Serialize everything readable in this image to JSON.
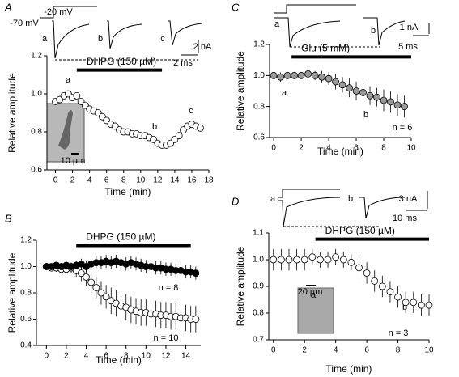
{
  "chart_data": [
    {
      "type": "scatter",
      "title": "A",
      "xlabel": "Time (min)",
      "ylabel": "Relative  amplitude",
      "xlim": [
        -1,
        18
      ],
      "ylim": [
        0.6,
        1.2
      ],
      "xticks": [
        0,
        2,
        4,
        6,
        8,
        10,
        12,
        14,
        16,
        18
      ],
      "yticks": [
        0.6,
        0.8,
        {
          "value": 1,
          "label": "1.0"
        },
        1.2
      ],
      "application": {
        "label": "DHPG (150 µM)",
        "start": 2.5,
        "end": 12.5
      },
      "annotations": [
        "-70 mV",
        "-20 mV",
        "a",
        "b",
        "c",
        "2 nA",
        "2 ms",
        "a",
        "b",
        "c",
        "10 µm"
      ],
      "x": [
        0,
        0.5,
        1,
        1.5,
        2,
        2.5,
        3,
        3.5,
        4,
        4.5,
        5,
        5.5,
        6,
        6.5,
        7,
        7.5,
        8,
        8.5,
        9,
        9.5,
        10,
        10.5,
        11,
        11.5,
        12,
        12.5,
        13,
        13.5,
        14,
        14.5,
        15,
        15.5,
        16,
        16.5,
        17
      ],
      "series": [
        {
          "color": "#000000",
          "fill": "#ffffff",
          "values": [
            0.96,
            0.97,
            0.99,
            1.0,
            0.98,
            0.99,
            0.96,
            0.94,
            0.92,
            0.91,
            0.9,
            0.88,
            0.86,
            0.84,
            0.83,
            0.81,
            0.8,
            0.8,
            0.79,
            0.79,
            0.78,
            0.78,
            0.77,
            0.76,
            0.74,
            0.73,
            0.73,
            0.74,
            0.76,
            0.78,
            0.81,
            0.83,
            0.84,
            0.83,
            0.82
          ]
        }
      ]
    },
    {
      "type": "scatter",
      "title": "B",
      "xlabel": "Time (min)",
      "ylabel": "Relative amplitude",
      "xlim": [
        -1,
        15.5
      ],
      "ylim": [
        0.4,
        1.2
      ],
      "xticks": [
        0,
        2,
        4,
        6,
        8,
        10,
        12,
        14
      ],
      "yticks": [
        0.4,
        0.6,
        0.8,
        {
          "value": 1,
          "label": "1.0"
        },
        1.2
      ],
      "application": {
        "label": "DHPG (150 µM)",
        "start": 3,
        "end": 14.5
      },
      "annotations": [
        "n = 8",
        "n = 10"
      ],
      "x": [
        0,
        0.5,
        1,
        1.5,
        2,
        2.5,
        3,
        3.5,
        4,
        4.5,
        5,
        5.5,
        6,
        6.5,
        7,
        7.5,
        8,
        8.5,
        9,
        9.5,
        10,
        10.5,
        11,
        11.5,
        12,
        12.5,
        13,
        13.5,
        14,
        14.5,
        15
      ],
      "series": [
        {
          "color": "#000000",
          "fill": "#ffffff",
          "values": [
            1.0,
            0.99,
            0.99,
            0.98,
            0.98,
            0.99,
            0.97,
            0.95,
            0.92,
            0.88,
            0.84,
            0.8,
            0.77,
            0.74,
            0.72,
            0.7,
            0.69,
            0.67,
            0.66,
            0.65,
            0.65,
            0.64,
            0.64,
            0.63,
            0.63,
            0.62,
            0.62,
            0.61,
            0.61,
            0.6,
            0.6
          ],
          "errors": [
            0.02,
            0.02,
            0.03,
            0.03,
            0.03,
            0.04,
            0.05,
            0.06,
            0.07,
            0.08,
            0.08,
            0.09,
            0.09,
            0.1,
            0.1,
            0.1,
            0.1,
            0.1,
            0.1,
            0.1,
            0.1,
            0.1,
            0.1,
            0.1,
            0.1,
            0.1,
            0.1,
            0.1,
            0.1,
            0.1,
            0.1
          ]
        },
        {
          "color": "#000000",
          "fill": "#000000",
          "values": [
            1.0,
            1.0,
            1.01,
            1.0,
            1.01,
            1.0,
            1.01,
            1.02,
            1.0,
            1.02,
            1.03,
            1.03,
            1.04,
            1.03,
            1.04,
            1.03,
            1.02,
            1.03,
            1.02,
            1.01,
            1.0,
            1.0,
            0.99,
            0.99,
            0.98,
            0.98,
            0.97,
            0.97,
            0.96,
            0.96,
            0.95
          ],
          "errors": [
            0.02,
            0.02,
            0.02,
            0.02,
            0.02,
            0.03,
            0.03,
            0.04,
            0.04,
            0.04,
            0.05,
            0.05,
            0.05,
            0.05,
            0.05,
            0.05,
            0.05,
            0.05,
            0.05,
            0.05,
            0.05,
            0.05,
            0.05,
            0.05,
            0.05,
            0.05,
            0.05,
            0.05,
            0.05,
            0.05,
            0.05
          ]
        }
      ]
    },
    {
      "type": "scatter",
      "title": "C",
      "xlabel": "Time (min)",
      "ylabel": "Relative amplitude",
      "xlim": [
        -0.3,
        10
      ],
      "ylim": [
        0.6,
        1.2
      ],
      "xticks": [
        0,
        2,
        4,
        6,
        8,
        10
      ],
      "yticks": [
        0.6,
        0.8,
        {
          "value": 1,
          "label": "1.0"
        },
        1.2
      ],
      "application": {
        "label": "Glu (5 mM)",
        "start": 1.3,
        "end": 10
      },
      "annotations": [
        "a",
        "b",
        "1 nA",
        "5 ms",
        "a",
        "b",
        "n = 6"
      ],
      "x": [
        0,
        0.5,
        1,
        1.5,
        2,
        2.5,
        3,
        3.5,
        4,
        4.5,
        5,
        5.5,
        6,
        6.5,
        7,
        7.5,
        8,
        8.5,
        9,
        9.5
      ],
      "series": [
        {
          "color": "#000000",
          "fill": "#999999",
          "values": [
            1.0,
            0.99,
            1.0,
            1.0,
            1.0,
            1.01,
            1.0,
            0.99,
            0.98,
            0.96,
            0.94,
            0.92,
            0.9,
            0.89,
            0.87,
            0.86,
            0.84,
            0.83,
            0.81,
            0.8
          ],
          "errors": [
            0.02,
            0.03,
            0.02,
            0.02,
            0.02,
            0.03,
            0.03,
            0.04,
            0.04,
            0.05,
            0.05,
            0.06,
            0.06,
            0.06,
            0.06,
            0.06,
            0.07,
            0.07,
            0.07,
            0.07
          ]
        }
      ]
    },
    {
      "type": "scatter",
      "title": "D",
      "xlabel": "Time (min)",
      "ylabel": "Relative amplitude",
      "xlim": [
        -0.3,
        10
      ],
      "ylim": [
        0.7,
        1.1
      ],
      "xticks": [
        0,
        2,
        4,
        6,
        8,
        10
      ],
      "yticks": [
        0.7,
        0.8,
        0.9,
        {
          "value": 1,
          "label": "1.0"
        },
        1.1
      ],
      "application": {
        "label": "DHPG (150 µM)",
        "start": 2.7,
        "end": 10
      },
      "annotations": [
        "a",
        "b",
        "3 nA",
        "10 ms",
        "a",
        "b",
        "n = 3",
        "20 µm"
      ],
      "x": [
        0,
        0.5,
        1,
        1.5,
        2,
        2.5,
        3,
        3.5,
        4,
        4.5,
        5,
        5.5,
        6,
        6.5,
        7,
        7.5,
        8,
        8.5,
        9,
        9.5,
        10
      ],
      "series": [
        {
          "color": "#000000",
          "fill": "#ffffff",
          "values": [
            1.0,
            1.0,
            1.0,
            1.0,
            1.0,
            1.01,
            1.0,
            1.0,
            1.01,
            1.0,
            0.99,
            0.97,
            0.95,
            0.92,
            0.9,
            0.88,
            0.86,
            0.84,
            0.84,
            0.83,
            0.83
          ],
          "errors": [
            0.04,
            0.04,
            0.04,
            0.04,
            0.04,
            0.03,
            0.03,
            0.03,
            0.03,
            0.03,
            0.03,
            0.04,
            0.04,
            0.04,
            0.04,
            0.04,
            0.04,
            0.04,
            0.04,
            0.04,
            0.04
          ]
        }
      ]
    }
  ]
}
